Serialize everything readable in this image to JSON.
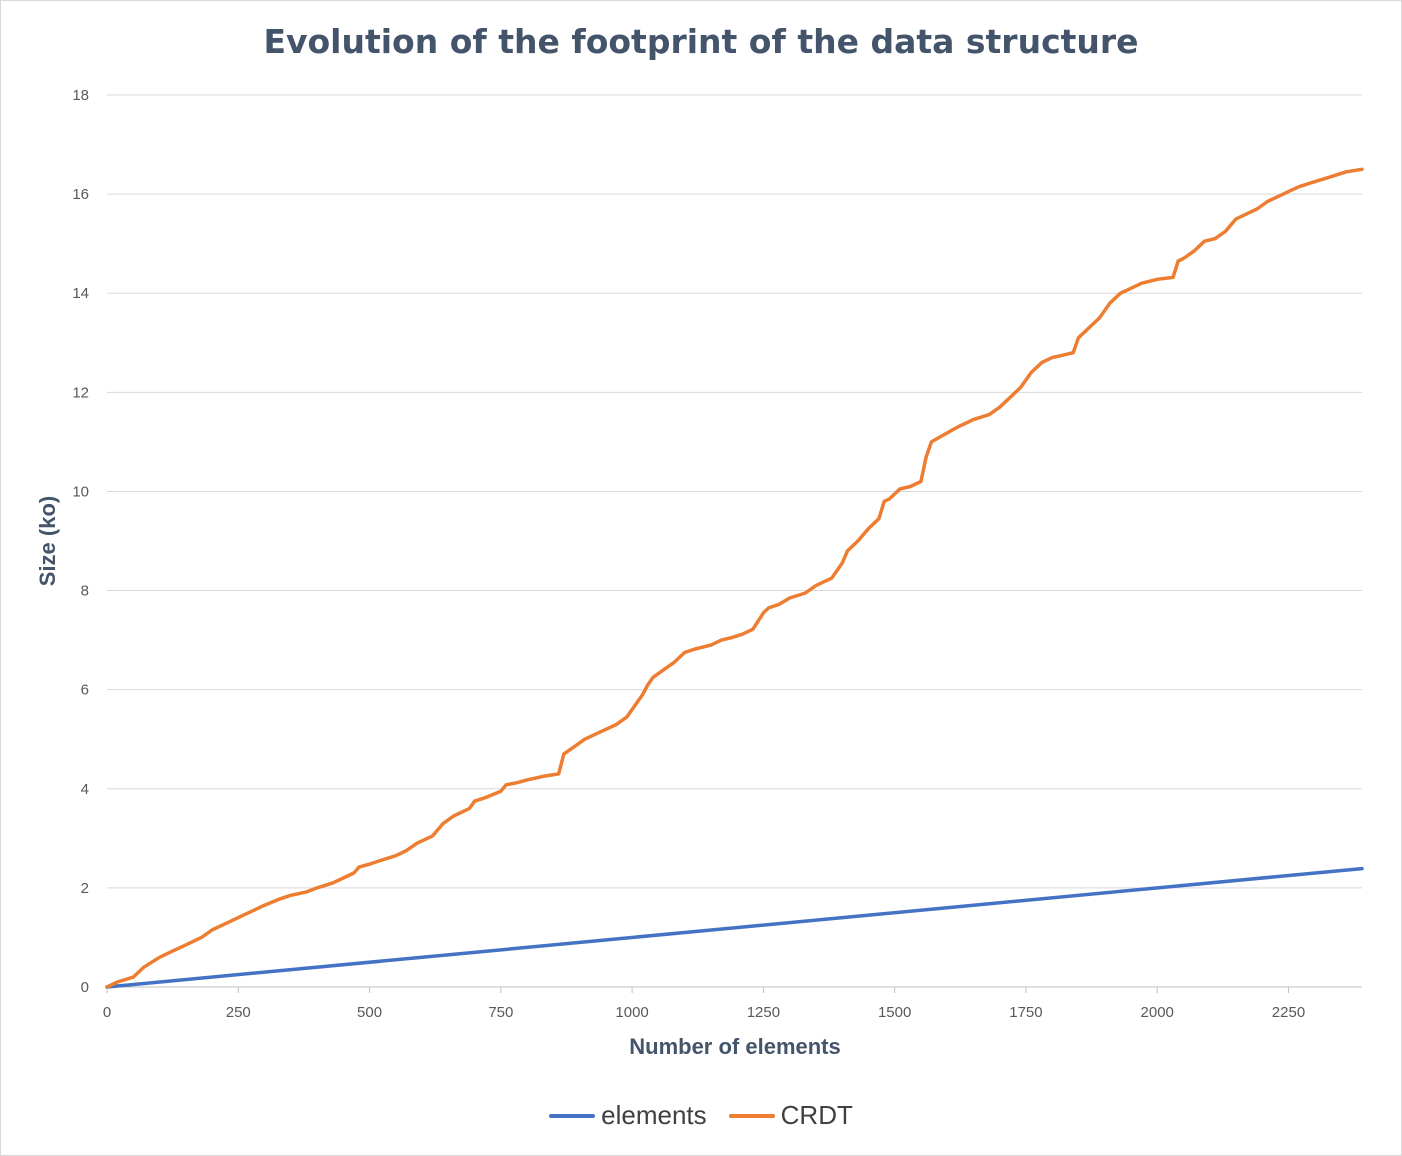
{
  "chart_data": {
    "type": "line",
    "title": "Evolution of the footprint of the data structure",
    "xlabel": "Number of elements",
    "ylabel": "Size  (ko)",
    "xlim": [
      0,
      2390
    ],
    "ylim": [
      0,
      18
    ],
    "x_ticks": [
      "0",
      "250",
      "500",
      "750",
      "1000",
      "1250",
      "1500",
      "1750",
      "2000",
      "2250"
    ],
    "y_ticks": [
      "0",
      "2",
      "4",
      "6",
      "8",
      "10",
      "12",
      "14",
      "16",
      "18"
    ],
    "grid": "horizontal",
    "legend_position": "bottom",
    "series": [
      {
        "name": "elements",
        "color": "#4472c4",
        "x": [
          0,
          2390
        ],
        "y": [
          0,
          2.39
        ]
      },
      {
        "name": "CRDT",
        "color": "#ed7d31",
        "x": [
          0,
          20,
          50,
          70,
          100,
          130,
          150,
          180,
          200,
          230,
          250,
          280,
          300,
          330,
          350,
          380,
          400,
          430,
          450,
          470,
          480,
          500,
          520,
          550,
          570,
          590,
          620,
          640,
          660,
          690,
          700,
          720,
          750,
          760,
          780,
          800,
          830,
          860,
          870,
          890,
          910,
          940,
          970,
          990,
          1000,
          1020,
          1030,
          1040,
          1060,
          1080,
          1100,
          1120,
          1150,
          1170,
          1190,
          1210,
          1230,
          1250,
          1260,
          1280,
          1300,
          1330,
          1350,
          1380,
          1400,
          1410,
          1430,
          1450,
          1470,
          1480,
          1490,
          1510,
          1530,
          1550,
          1560,
          1570,
          1590,
          1620,
          1650,
          1680,
          1700,
          1720,
          1740,
          1760,
          1780,
          1800,
          1820,
          1840,
          1850,
          1870,
          1890,
          1910,
          1930,
          1950,
          1970,
          2000,
          2030,
          2040,
          2050,
          2070,
          2090,
          2110,
          2130,
          2150,
          2170,
          2190,
          2210,
          2230,
          2250,
          2270,
          2300,
          2330,
          2360,
          2390
        ],
        "y": [
          0,
          0.1,
          0.2,
          0.4,
          0.6,
          0.75,
          0.85,
          1.0,
          1.15,
          1.3,
          1.4,
          1.55,
          1.65,
          1.78,
          1.85,
          1.92,
          2.0,
          2.1,
          2.2,
          2.3,
          2.42,
          2.48,
          2.55,
          2.65,
          2.75,
          2.9,
          3.05,
          3.3,
          3.45,
          3.6,
          3.75,
          3.82,
          3.95,
          4.08,
          4.12,
          4.18,
          4.25,
          4.3,
          4.7,
          4.85,
          5.0,
          5.15,
          5.3,
          5.45,
          5.6,
          5.9,
          6.1,
          6.25,
          6.4,
          6.55,
          6.75,
          6.82,
          6.9,
          7.0,
          7.05,
          7.12,
          7.22,
          7.55,
          7.65,
          7.72,
          7.85,
          7.95,
          8.1,
          8.25,
          8.55,
          8.8,
          9.0,
          9.25,
          9.45,
          9.8,
          9.85,
          10.05,
          10.1,
          10.2,
          10.7,
          11.0,
          11.12,
          11.3,
          11.45,
          11.55,
          11.7,
          11.9,
          12.1,
          12.4,
          12.6,
          12.7,
          12.75,
          12.8,
          13.1,
          13.3,
          13.5,
          13.8,
          14.0,
          14.1,
          14.2,
          14.28,
          14.32,
          14.65,
          14.7,
          14.85,
          15.05,
          15.1,
          15.25,
          15.5,
          15.6,
          15.7,
          15.85,
          15.95,
          16.05,
          16.15,
          16.25,
          16.35,
          16.45,
          16.5
        ]
      }
    ]
  }
}
